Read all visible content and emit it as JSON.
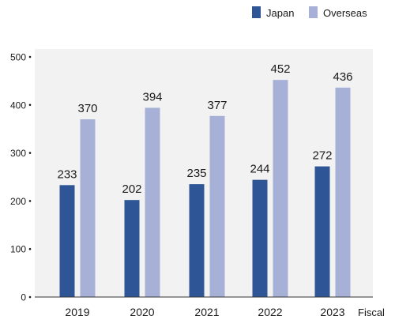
{
  "chart_data": {
    "type": "bar",
    "categories": [
      "2019",
      "2020",
      "2021",
      "2022",
      "2023"
    ],
    "series": [
      {
        "name": "Japan",
        "values": [
          233,
          202,
          235,
          244,
          272
        ],
        "color": "#2e5596"
      },
      {
        "name": "Overseas",
        "values": [
          370,
          394,
          377,
          452,
          436
        ],
        "color": "#a7b0d6"
      }
    ],
    "xlabel": "Fiscal",
    "ylabel": "",
    "ylim": [
      0,
      500
    ],
    "yticks": [
      "0",
      "100",
      "200",
      "300",
      "400",
      "500"
    ],
    "grid": false,
    "legend": "top-right",
    "plot_background": "#f2f2f2",
    "data_labels": true
  }
}
